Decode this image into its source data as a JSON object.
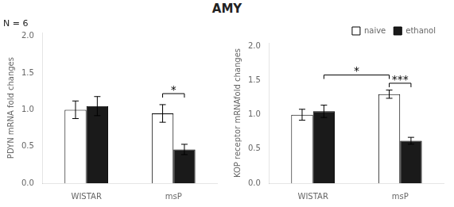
{
  "chart_data": [
    {
      "type": "bar",
      "title": "AMY",
      "subtitle": "N = 6",
      "categories": [
        "WISTAR",
        "msP"
      ],
      "series": [
        {
          "name": "naive",
          "color": "#ffffff",
          "values": [
            1.0,
            0.95
          ],
          "errors": [
            0.12,
            0.12
          ]
        },
        {
          "name": "ethanol",
          "color": "#1a1a1a",
          "values": [
            1.05,
            0.46
          ],
          "errors": [
            0.13,
            0.07
          ]
        }
      ],
      "y_label": "PDYN mRNA fold changes",
      "ylim": [
        0.0,
        2.05
      ],
      "yticks": [
        {
          "value": 0.0,
          "label": "0.0"
        },
        {
          "value": 0.5,
          "label": "0.5"
        },
        {
          "value": 1.0,
          "label": "1.0"
        },
        {
          "value": 1.5,
          "label": "1.5"
        },
        {
          "value": 2.0,
          "label": "2.0"
        }
      ],
      "grid": false,
      "annotations": [
        {
          "text": "*",
          "y": 1.22,
          "from": {
            "category": "msP",
            "series": "naive"
          },
          "to": {
            "category": "msP",
            "series": "ethanol"
          }
        }
      ]
    },
    {
      "type": "bar",
      "categories": [
        "WISTAR",
        "msP"
      ],
      "series": [
        {
          "name": "naive",
          "color": "#ffffff",
          "values": [
            1.0,
            1.3
          ],
          "errors": [
            0.08,
            0.06
          ]
        },
        {
          "name": "ethanol",
          "color": "#1a1a1a",
          "values": [
            1.05,
            0.62
          ],
          "errors": [
            0.09,
            0.05
          ]
        }
      ],
      "y_label": "KOP receptor mRNAfold changes",
      "ylim": [
        0.0,
        2.05
      ],
      "yticks": [
        {
          "value": 0.0,
          "label": "0.0"
        },
        {
          "value": 0.5,
          "label": "0.5"
        },
        {
          "value": 1.0,
          "label": "1.0"
        },
        {
          "value": 1.5,
          "label": "1.5"
        },
        {
          "value": 2.0,
          "label": "2.0"
        }
      ],
      "grid": false,
      "legend": "upper right",
      "annotations": [
        {
          "text": "*",
          "y": 1.58,
          "from": {
            "category": "WISTAR",
            "series": "ethanol"
          },
          "to": {
            "category": "msP",
            "series": "naive"
          }
        },
        {
          "text": "***",
          "y": 1.46,
          "from": {
            "category": "msP",
            "series": "naive"
          },
          "to": {
            "category": "msP",
            "series": "ethanol"
          }
        }
      ]
    }
  ]
}
